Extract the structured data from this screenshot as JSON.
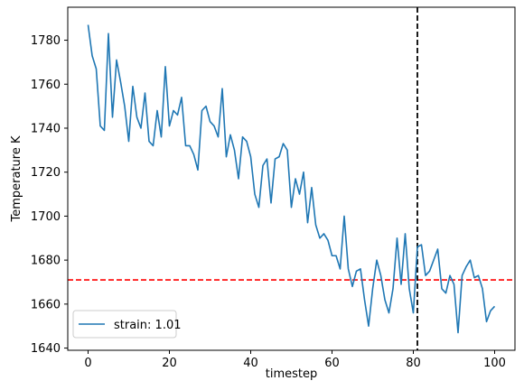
{
  "chart_data": {
    "type": "line",
    "title": "",
    "xlabel": "timestep",
    "ylabel": "Temperature K",
    "xlim": [
      -5,
      105
    ],
    "ylim": [
      1639,
      1795
    ],
    "xticks": [
      0,
      20,
      40,
      60,
      80,
      100
    ],
    "yticks": [
      1640,
      1660,
      1680,
      1700,
      1720,
      1740,
      1760,
      1780
    ],
    "grid": false,
    "legend": {
      "position": "lower-left",
      "entries": [
        "strain: 1.01"
      ]
    },
    "series": [
      {
        "name": "strain: 1.01",
        "color": "#1f77b4",
        "x": [
          0,
          1,
          2,
          3,
          4,
          5,
          6,
          7,
          8,
          9,
          10,
          11,
          12,
          13,
          14,
          15,
          16,
          17,
          18,
          19,
          20,
          21,
          22,
          23,
          24,
          25,
          26,
          27,
          28,
          29,
          30,
          31,
          32,
          33,
          34,
          35,
          36,
          37,
          38,
          39,
          40,
          41,
          42,
          43,
          44,
          45,
          46,
          47,
          48,
          49,
          50,
          51,
          52,
          53,
          54,
          55,
          56,
          57,
          58,
          59,
          60,
          61,
          62,
          63,
          64,
          65,
          66,
          67,
          68,
          69,
          70,
          71,
          72,
          73,
          74,
          75,
          76,
          77,
          78,
          79,
          80,
          81,
          82,
          83,
          84,
          85,
          86,
          87,
          88,
          89,
          90,
          91,
          92,
          93,
          94,
          95,
          96,
          97,
          98,
          99,
          100
        ],
        "y": [
          1787,
          1773,
          1767,
          1741,
          1739,
          1783,
          1745,
          1771,
          1761,
          1750,
          1734,
          1759,
          1745,
          1740,
          1756,
          1734,
          1732,
          1748,
          1736,
          1768,
          1741,
          1748,
          1746,
          1754,
          1732,
          1732,
          1728,
          1721,
          1748,
          1750,
          1743,
          1741,
          1736,
          1758,
          1727,
          1737,
          1730,
          1717,
          1736,
          1734,
          1727,
          1710,
          1704,
          1723,
          1726,
          1706,
          1726,
          1727,
          1733,
          1730,
          1704,
          1717,
          1710,
          1720,
          1697,
          1713,
          1696,
          1690,
          1692,
          1689,
          1682,
          1682,
          1676,
          1700,
          1676,
          1668,
          1675,
          1676,
          1662,
          1650,
          1667,
          1680,
          1673,
          1662,
          1656,
          1667,
          1690,
          1669,
          1692,
          1667,
          1656,
          1686,
          1687,
          1673,
          1675,
          1680,
          1685,
          1667,
          1665,
          1673,
          1669,
          1647,
          1673,
          1677,
          1680,
          1672,
          1673,
          1667,
          1652,
          1657,
          1659
        ]
      }
    ],
    "reference_lines": [
      {
        "orientation": "horizontal",
        "value": 1671,
        "color": "#ff0000",
        "style": "dashed"
      },
      {
        "orientation": "vertical",
        "value": 81,
        "color": "#000000",
        "style": "dashed"
      }
    ]
  }
}
